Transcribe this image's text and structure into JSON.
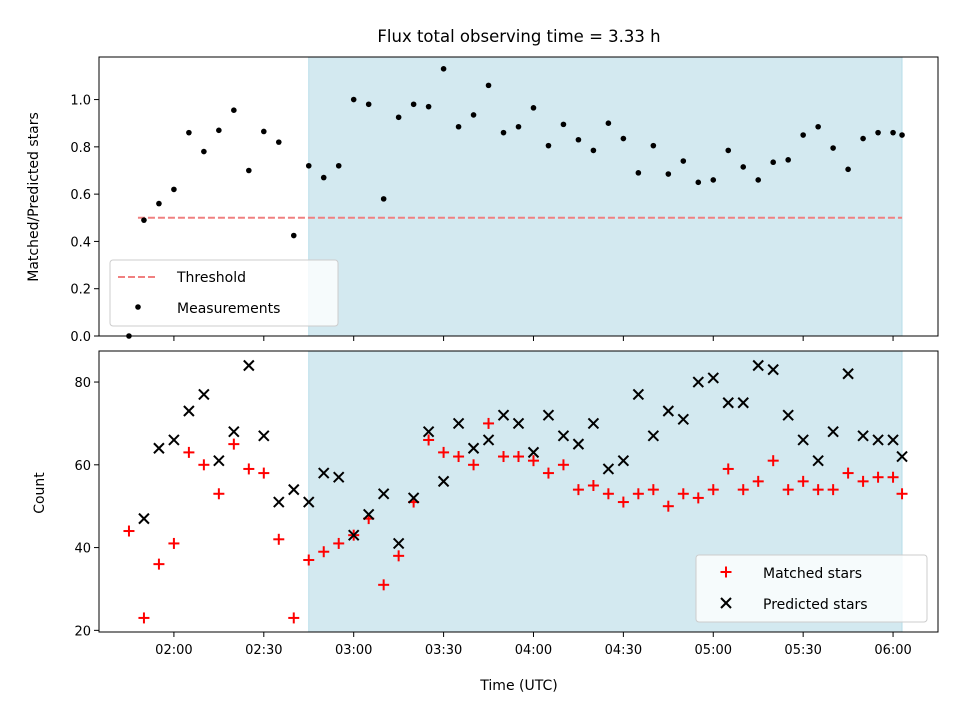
{
  "chart_data": [
    {
      "type": "scatter",
      "title": "Flux total observing time = 3.33 h",
      "xlabel": "",
      "ylabel": "Matched/Predicted stars",
      "ylim": [
        0,
        1.18
      ],
      "yticks": [
        "0.0",
        "0.2",
        "0.4",
        "0.6",
        "0.8",
        "1.0"
      ],
      "ytick_values": [
        0,
        0.2,
        0.4,
        0.6,
        0.8,
        1.0
      ],
      "xlim": [
        "01:35",
        "06:15"
      ],
      "highlight_span": [
        "02:45",
        "06:03"
      ],
      "highlight_color": "#d3e9f0",
      "threshold": {
        "name": "Threshold",
        "value": 0.5,
        "x_range": [
          "01:48",
          "06:03"
        ],
        "color": "#f08080"
      },
      "legend": {
        "position": "lower left",
        "entries": [
          "Threshold",
          "Measurements"
        ]
      },
      "series": [
        {
          "name": "Measurements",
          "marker": "dot",
          "color": "#000000",
          "x": [
            "01:45",
            "01:50",
            "01:55",
            "02:00",
            "02:05",
            "02:10",
            "02:15",
            "02:20",
            "02:25",
            "02:30",
            "02:35",
            "02:40",
            "02:45",
            "02:50",
            "02:55",
            "03:00",
            "03:05",
            "03:10",
            "03:15",
            "03:20",
            "03:25",
            "03:30",
            "03:35",
            "03:40",
            "03:45",
            "03:50",
            "03:55",
            "04:00",
            "04:05",
            "04:10",
            "04:15",
            "04:20",
            "04:25",
            "04:30",
            "04:35",
            "04:40",
            "04:45",
            "04:50",
            "04:55",
            "05:00",
            "05:05",
            "05:10",
            "05:15",
            "05:20",
            "05:25",
            "05:30",
            "05:35",
            "05:40",
            "05:45",
            "05:50",
            "05:55",
            "06:00",
            "06:03"
          ],
          "y": [
            0.0,
            0.49,
            0.56,
            0.62,
            0.86,
            0.78,
            0.87,
            0.955,
            0.7,
            0.865,
            0.82,
            0.425,
            0.72,
            0.67,
            0.72,
            1.0,
            0.98,
            0.58,
            0.925,
            0.98,
            0.97,
            1.13,
            0.885,
            0.935,
            1.06,
            0.86,
            0.885,
            0.965,
            0.805,
            0.895,
            0.83,
            0.785,
            0.9,
            0.835,
            0.69,
            0.805,
            0.685,
            0.74,
            0.65,
            0.66,
            0.785,
            0.715,
            0.66,
            0.735,
            0.745,
            0.85,
            0.885,
            0.795,
            0.705,
            0.835,
            0.86,
            0.86,
            0.85
          ]
        }
      ]
    },
    {
      "type": "scatter",
      "title": "",
      "xlabel": "Time (UTC)",
      "ylabel": "Count",
      "ylim": [
        19.6,
        87.5
      ],
      "yticks": [
        "20",
        "40",
        "60",
        "80"
      ],
      "ytick_values": [
        20,
        40,
        60,
        80
      ],
      "xlim": [
        "01:35",
        "06:15"
      ],
      "xticks": [
        "02:00",
        "02:30",
        "03:00",
        "03:30",
        "04:00",
        "04:30",
        "05:00",
        "05:30",
        "06:00"
      ],
      "highlight_span": [
        "02:45",
        "06:03"
      ],
      "highlight_color": "#d3e9f0",
      "legend": {
        "position": "lower right",
        "entries": [
          "Matched stars",
          "Predicted stars"
        ]
      },
      "series": [
        {
          "name": "Matched stars",
          "marker": "plus",
          "color": "#ff0000",
          "x": [
            "01:45",
            "01:50",
            "01:55",
            "02:00",
            "02:05",
            "02:10",
            "02:15",
            "02:20",
            "02:25",
            "02:30",
            "02:35",
            "02:40",
            "02:45",
            "02:50",
            "02:55",
            "03:00",
            "03:05",
            "03:10",
            "03:15",
            "03:20",
            "03:25",
            "03:30",
            "03:35",
            "03:40",
            "03:45",
            "03:50",
            "03:55",
            "04:00",
            "04:05",
            "04:10",
            "04:15",
            "04:20",
            "04:25",
            "04:30",
            "04:35",
            "04:40",
            "04:45",
            "04:50",
            "04:55",
            "05:00",
            "05:05",
            "05:10",
            "05:15",
            "05:20",
            "05:25",
            "05:30",
            "05:35",
            "05:40",
            "05:45",
            "05:50",
            "05:55",
            "06:00",
            "06:03"
          ],
          "y": [
            44,
            23,
            36,
            41,
            63,
            60,
            53,
            65,
            59,
            58,
            42,
            23,
            37,
            39,
            41,
            43,
            47,
            31,
            38,
            51,
            66,
            63,
            62,
            60,
            70,
            62,
            62,
            61,
            58,
            60,
            54,
            55,
            53,
            51,
            53,
            54,
            50,
            53,
            52,
            54,
            59,
            54,
            56,
            61,
            54,
            56,
            54,
            54,
            58,
            56,
            57,
            57,
            53
          ]
        },
        {
          "name": "Predicted stars",
          "marker": "x",
          "color": "#000000",
          "x": [
            "01:50",
            "01:55",
            "02:00",
            "02:05",
            "02:10",
            "02:15",
            "02:20",
            "02:25",
            "02:30",
            "02:35",
            "02:40",
            "02:45",
            "02:50",
            "02:55",
            "03:00",
            "03:05",
            "03:10",
            "03:15",
            "03:20",
            "03:25",
            "03:30",
            "03:35",
            "03:40",
            "03:45",
            "03:50",
            "03:55",
            "04:00",
            "04:05",
            "04:10",
            "04:15",
            "04:20",
            "04:25",
            "04:30",
            "04:35",
            "04:40",
            "04:45",
            "04:50",
            "04:55",
            "05:00",
            "05:05",
            "05:10",
            "05:15",
            "05:20",
            "05:25",
            "05:30",
            "05:35",
            "05:40",
            "05:45",
            "05:50",
            "05:55",
            "06:00",
            "06:03"
          ],
          "y": [
            47,
            64,
            66,
            73,
            77,
            61,
            68,
            84,
            67,
            51,
            54,
            51,
            58,
            57,
            43,
            48,
            53,
            41,
            52,
            68,
            56,
            70,
            64,
            66,
            72,
            70,
            63,
            72,
            67,
            65,
            70,
            59,
            61,
            77,
            67,
            73,
            71,
            80,
            81,
            75,
            75,
            84,
            83,
            72,
            66,
            61,
            68,
            82,
            67,
            66,
            66,
            62
          ]
        }
      ]
    }
  ]
}
